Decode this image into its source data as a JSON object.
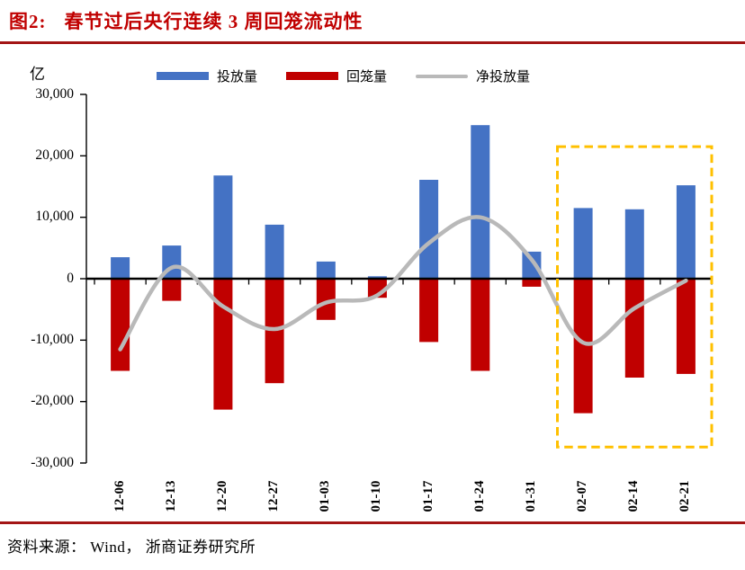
{
  "title": {
    "prefix": "图2:",
    "text": "春节过后央行连续 3 周回笼流动性"
  },
  "source": "资料来源： Wind， 浙商证券研究所",
  "colors": {
    "title_red": "#C00000",
    "rule_red": "#A31515",
    "bar_blue": "#4472C4",
    "bar_red": "#C00000",
    "line_gray": "#B9B9B9",
    "highlight_yellow": "#FFC000",
    "axis_black": "#000000"
  },
  "y_axis": {
    "unit": "亿",
    "min": -30000,
    "max": 30000,
    "step": 10000
  },
  "chart_data": {
    "type": "bar",
    "title": "春节过后央行连续 3 周回笼流动性",
    "categories": [
      "12-06",
      "12-13",
      "12-20",
      "12-27",
      "01-03",
      "01-10",
      "01-17",
      "01-24",
      "01-31",
      "02-07",
      "02-14",
      "02-21"
    ],
    "series": [
      {
        "name": "投放量",
        "key": "injection-volume",
        "type": "bar",
        "color": "#4472C4",
        "values": [
          3500,
          5400,
          16800,
          8800,
          2800,
          400,
          16100,
          25000,
          4400,
          11500,
          11300,
          15200
        ]
      },
      {
        "name": "回笼量",
        "key": "withdrawal-volume",
        "type": "bar",
        "color": "#C00000",
        "values": [
          -15000,
          -3600,
          -21300,
          -17000,
          -6700,
          -3100,
          -10300,
          -15000,
          -1300,
          -21900,
          -16100,
          -15500
        ]
      },
      {
        "name": "净投放量",
        "key": "net-injection",
        "type": "line",
        "color": "#B9B9B9",
        "smooth": true,
        "values": [
          -11500,
          1800,
          -4500,
          -8200,
          -3900,
          -2700,
          5800,
          10000,
          3100,
          -10400,
          -4800,
          -300
        ]
      }
    ],
    "ylabel": "亿",
    "ylim": [
      -30000,
      30000
    ],
    "ytick_step": 10000,
    "grid": false,
    "legend_position": "top",
    "highlight_box": {
      "from_category": "02-07",
      "to_category": "02-21",
      "y_top": 21500,
      "y_bottom": -27400,
      "color": "#FFC000",
      "style": "dashed"
    }
  }
}
